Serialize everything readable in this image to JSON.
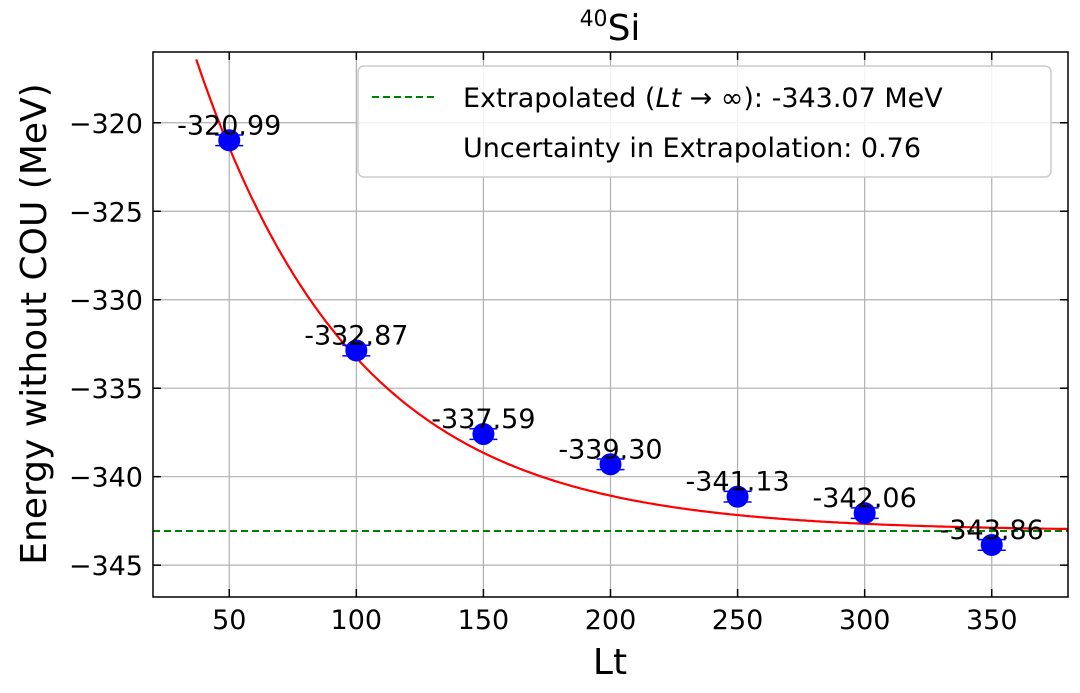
{
  "chart_data": {
    "type": "scatter",
    "title_sup": "40",
    "title": "Si",
    "xlabel": "Lt",
    "ylabel": "Energy without COU (MeV)",
    "xlim": [
      20,
      380
    ],
    "ylim": [
      -346.8,
      -316.0
    ],
    "xticks": [
      50,
      100,
      150,
      200,
      250,
      300,
      350
    ],
    "yticks": [
      -320,
      -325,
      -330,
      -335,
      -340,
      -345
    ],
    "ytick_labels": [
      "−320",
      "−325",
      "−330",
      "−335",
      "−340",
      "−345"
    ],
    "grid": true,
    "legend_position": "top-right",
    "series": [
      {
        "kind": "points",
        "color": "#0000ff",
        "x": [
          50,
          100,
          150,
          200,
          250,
          300,
          350
        ],
        "y": [
          -320.99,
          -332.87,
          -337.59,
          -339.3,
          -341.13,
          -342.06,
          -343.86
        ],
        "yerr": [
          0.3,
          0.3,
          0.3,
          0.3,
          0.3,
          0.3,
          0.3
        ],
        "labels": [
          "-320.99",
          "-332.87",
          "-337.59",
          "-339.30",
          "-341.13",
          "-342.06",
          "-343.86"
        ]
      },
      {
        "kind": "fit",
        "color": "#ff0000",
        "asymptote": -343.07,
        "amplitude": 48.0,
        "decay": 0.0159
      },
      {
        "kind": "hline",
        "color": "#008000",
        "y": -343.07
      }
    ],
    "legend": {
      "line1": "Extrapolated (",
      "line1_math": "Lt",
      "line1_arrow": " → ∞",
      "line1_tail": "): -343.07 MeV",
      "line2": "Uncertainty in Extrapolation: 0.76"
    }
  }
}
